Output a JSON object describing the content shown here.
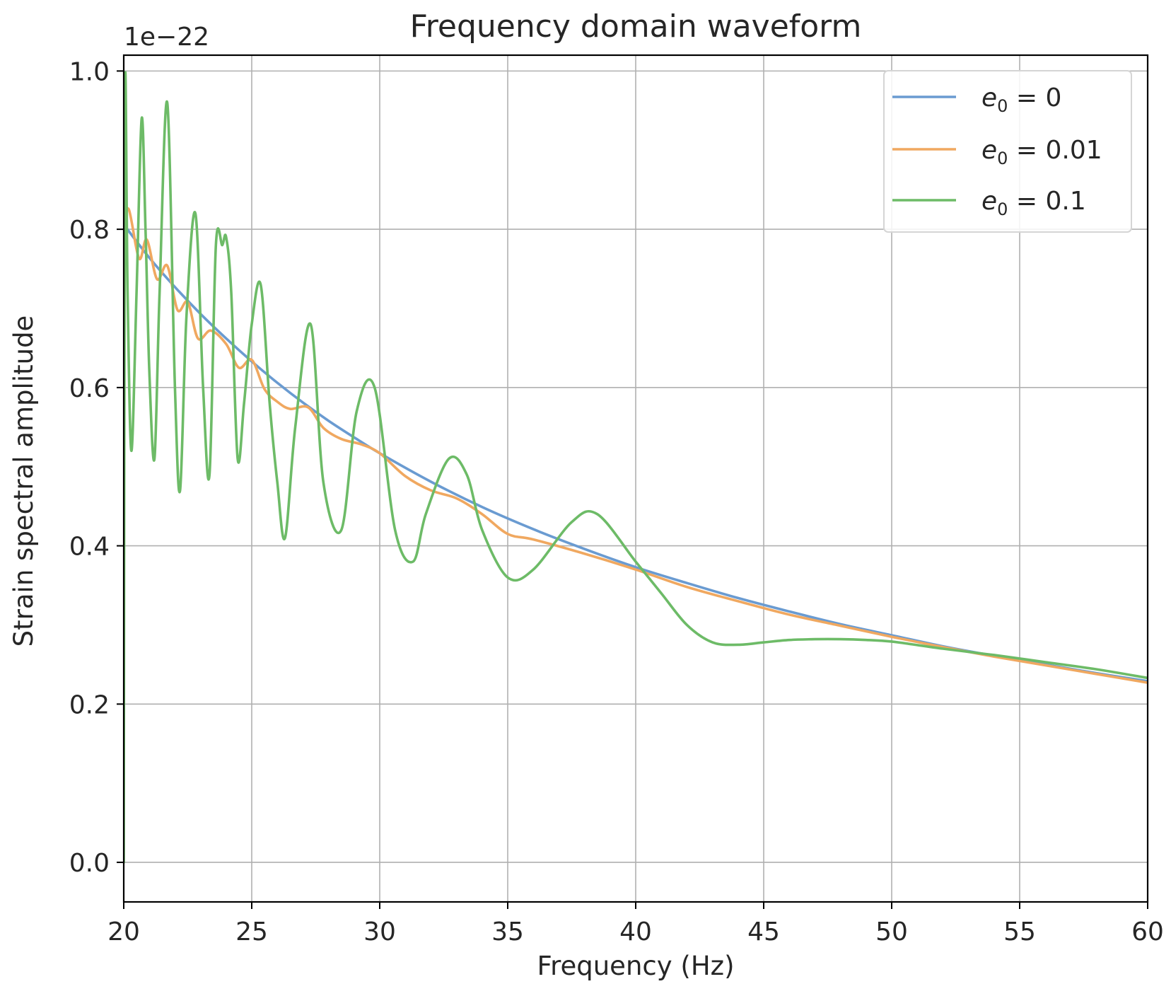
{
  "chart_data": {
    "type": "line",
    "title": "Frequency domain waveform",
    "xlabel": "Frequency (Hz)",
    "ylabel": "Strain spectral amplitude",
    "offset_text": "1e−22",
    "xlim": [
      20,
      60
    ],
    "ylim": [
      -0.05,
      1.02
    ],
    "xticks": [
      20,
      25,
      30,
      35,
      40,
      45,
      50,
      55,
      60
    ],
    "xtick_labels": [
      "20",
      "25",
      "30",
      "35",
      "40",
      "45",
      "50",
      "55",
      "60"
    ],
    "yticks": [
      0.0,
      0.2,
      0.4,
      0.6,
      0.8,
      1.0
    ],
    "ytick_labels": [
      "0.0",
      "0.2",
      "0.4",
      "0.6",
      "0.8",
      "1.0"
    ],
    "grid": true,
    "legend_position": "top-right",
    "series": [
      {
        "name": "e0 = 0",
        "legend": {
          "var": "e",
          "sub": "0",
          "value": " = 0"
        },
        "color": "#6a9bd1",
        "x": [
          20,
          21,
          22,
          23,
          24,
          25,
          26,
          27,
          28,
          29,
          30,
          32,
          34,
          36,
          38,
          40,
          42,
          44,
          46,
          48,
          50,
          52,
          54,
          56,
          58,
          60
        ],
        "y": [
          0.806,
          0.764,
          0.727,
          0.693,
          0.662,
          0.633,
          0.606,
          0.581,
          0.558,
          0.537,
          0.517,
          0.481,
          0.449,
          0.421,
          0.396,
          0.373,
          0.353,
          0.334,
          0.317,
          0.301,
          0.287,
          0.273,
          0.261,
          0.25,
          0.239,
          0.229
        ]
      },
      {
        "name": "e0 = 0.01",
        "legend": {
          "var": "e",
          "sub": "0",
          "value": " = 0.01"
        },
        "color": "#f0a860",
        "x": [
          20,
          20.2,
          20.6,
          20.9,
          21.3,
          21.7,
          22.1,
          22.5,
          22.9,
          23.4,
          24.0,
          24.5,
          25.0,
          25.5,
          26.0,
          26.5,
          27.2,
          27.8,
          28.5,
          29.3,
          30.0,
          31,
          32,
          33,
          34,
          35,
          36,
          38,
          40,
          42,
          44,
          46,
          48,
          50,
          52,
          54,
          56,
          58,
          60
        ],
        "y": [
          0.806,
          0.825,
          0.763,
          0.787,
          0.737,
          0.754,
          0.698,
          0.708,
          0.662,
          0.672,
          0.655,
          0.625,
          0.635,
          0.598,
          0.582,
          0.573,
          0.575,
          0.549,
          0.535,
          0.528,
          0.517,
          0.488,
          0.47,
          0.46,
          0.44,
          0.415,
          0.408,
          0.39,
          0.37,
          0.348,
          0.33,
          0.313,
          0.299,
          0.285,
          0.272,
          0.26,
          0.249,
          0.238,
          0.227
        ]
      },
      {
        "name": "e0 = 0.1",
        "legend": {
          "var": "e",
          "sub": "0",
          "value": " = 0.1"
        },
        "color": "#6dbb67",
        "x": [
          20.0,
          20.05,
          20.15,
          20.3,
          20.5,
          20.7,
          20.85,
          21.0,
          21.2,
          21.4,
          21.7,
          22.0,
          22.2,
          22.45,
          22.8,
          23.1,
          23.35,
          23.6,
          23.85,
          24.0,
          24.2,
          24.45,
          24.7,
          25.0,
          25.35,
          25.7,
          26.0,
          26.3,
          26.7,
          27.3,
          27.8,
          28.5,
          29.1,
          29.8,
          30.6,
          31.3,
          31.8,
          32.7,
          33.4,
          34.0,
          35.0,
          36.0,
          37.5,
          38.5,
          40.0,
          41.0,
          42.0,
          43.0,
          44.0,
          45.0,
          46.0,
          47.0,
          48.0,
          49.0,
          50.0,
          52,
          54,
          56,
          58,
          60
        ],
        "y": [
          0.0,
          0.97,
          0.72,
          0.52,
          0.72,
          0.94,
          0.8,
          0.62,
          0.51,
          0.72,
          0.96,
          0.6,
          0.47,
          0.69,
          0.82,
          0.6,
          0.49,
          0.78,
          0.78,
          0.79,
          0.72,
          0.51,
          0.58,
          0.68,
          0.73,
          0.58,
          0.48,
          0.41,
          0.55,
          0.68,
          0.48,
          0.42,
          0.57,
          0.6,
          0.42,
          0.38,
          0.44,
          0.51,
          0.49,
          0.42,
          0.36,
          0.37,
          0.43,
          0.44,
          0.38,
          0.34,
          0.3,
          0.278,
          0.275,
          0.278,
          0.281,
          0.282,
          0.282,
          0.281,
          0.279,
          0.27,
          0.262,
          0.253,
          0.244,
          0.233
        ]
      }
    ]
  }
}
